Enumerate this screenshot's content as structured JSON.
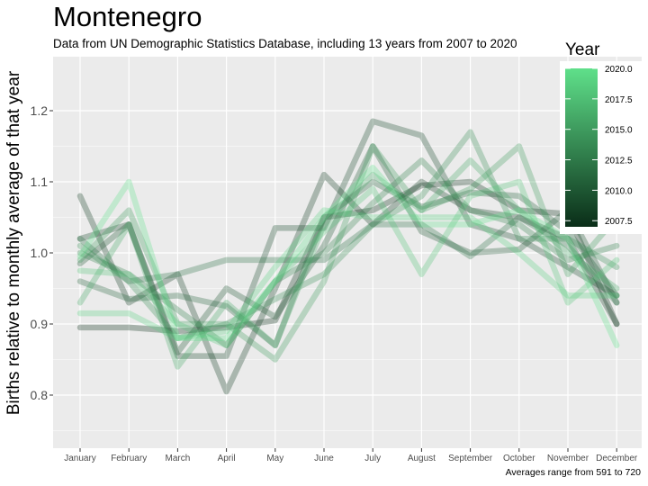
{
  "chart_data": {
    "type": "line",
    "title": "Montenegro",
    "subtitle": "Data from UN Demographic Statistics Database, including 13 years from 2007 to 2020",
    "caption": "Averages range from 591 to 720",
    "xlabel": "",
    "ylabel": "Births relative to monthly average of that year",
    "categories": [
      "January",
      "February",
      "March",
      "April",
      "May",
      "June",
      "July",
      "August",
      "September",
      "October",
      "November",
      "December"
    ],
    "ylim": [
      0.72,
      1.27
    ],
    "yticks": [
      0.8,
      0.9,
      1.0,
      1.1,
      1.2
    ],
    "ytick_labels": [
      "0.8",
      "0.9",
      "1.0",
      "1.1",
      "1.2"
    ],
    "grid": true,
    "legend": {
      "title": "Year",
      "placement": "right",
      "range": [
        2007,
        2020
      ],
      "ticks": [
        2007.5,
        2010.0,
        2012.5,
        2015.0,
        2017.5,
        2020.0
      ],
      "tick_labels": [
        "2007.5",
        "2010.0",
        "2012.5",
        "2015.0",
        "2017.5",
        "2020.0"
      ],
      "color_low": "#0a2d18",
      "color_high": "#5fe08a"
    },
    "series": [
      {
        "year": 2007,
        "values": [
          0.895,
          0.895,
          0.89,
          0.895,
          0.905,
          1.05,
          1.06,
          1.095,
          1.1,
          1.06,
          1.055,
          0.9
        ]
      },
      {
        "year": 2008,
        "values": [
          1.08,
          0.93,
          0.97,
          0.805,
          0.95,
          1.11,
          1.04,
          1.1,
          1.06,
          1.05,
          1.02,
          0.9
        ]
      },
      {
        "year": 2009,
        "values": [
          1.02,
          1.04,
          0.855,
          0.855,
          1.035,
          1.035,
          1.185,
          1.165,
          1.04,
          1.02,
          0.98,
          0.94
        ]
      },
      {
        "year": 2010,
        "values": [
          0.985,
          1.04,
          0.86,
          0.95,
          0.91,
          1.01,
          1.15,
          1.03,
          1.0,
          1.005,
          1.06,
          0.93
        ]
      },
      {
        "year": 2011,
        "values": [
          0.96,
          0.935,
          0.94,
          0.925,
          0.87,
          1.05,
          1.1,
          1.065,
          1.085,
          1.08,
          1.03,
          0.94
        ]
      },
      {
        "year": 2012,
        "values": [
          1.02,
          0.96,
          0.97,
          0.99,
          0.99,
          0.99,
          1.04,
          1.04,
          0.995,
          1.05,
          1.01,
          0.93
        ]
      },
      {
        "year": 2013,
        "values": [
          1.0,
          0.97,
          0.92,
          0.87,
          0.96,
          1.0,
          1.07,
          1.13,
          1.06,
          1.04,
          0.99,
          1.01
        ]
      },
      {
        "year": 2014,
        "values": [
          1.01,
          0.96,
          0.88,
          0.9,
          0.935,
          0.97,
          1.04,
          1.08,
          1.17,
          1.02,
          1.02,
          0.98
        ]
      },
      {
        "year": 2015,
        "values": [
          0.99,
          1.06,
          0.9,
          0.9,
          0.85,
          0.96,
          1.15,
          1.06,
          1.09,
          1.15,
          0.97,
          1.05
        ]
      },
      {
        "year": 2016,
        "values": [
          0.93,
          1.04,
          0.84,
          0.93,
          0.87,
          1.04,
          1.11,
          1.06,
          1.13,
          1.06,
          1.0,
          0.95
        ]
      },
      {
        "year": 2018,
        "values": [
          0.975,
          0.97,
          0.9,
          0.87,
          0.96,
          1.03,
          1.09,
          0.97,
          1.08,
          1.1,
          0.93,
          0.99
        ]
      },
      {
        "year": 2019,
        "values": [
          0.915,
          0.915,
          0.88,
          0.89,
          0.98,
          1.06,
          1.05,
          1.05,
          1.05,
          1.0,
          0.94,
          0.94
        ]
      },
      {
        "year": 2020,
        "values": [
          0.995,
          1.1,
          0.88,
          0.88,
          0.96,
          1.05,
          1.12,
          1.04,
          1.04,
          1.06,
          1.02,
          0.87
        ]
      }
    ]
  }
}
